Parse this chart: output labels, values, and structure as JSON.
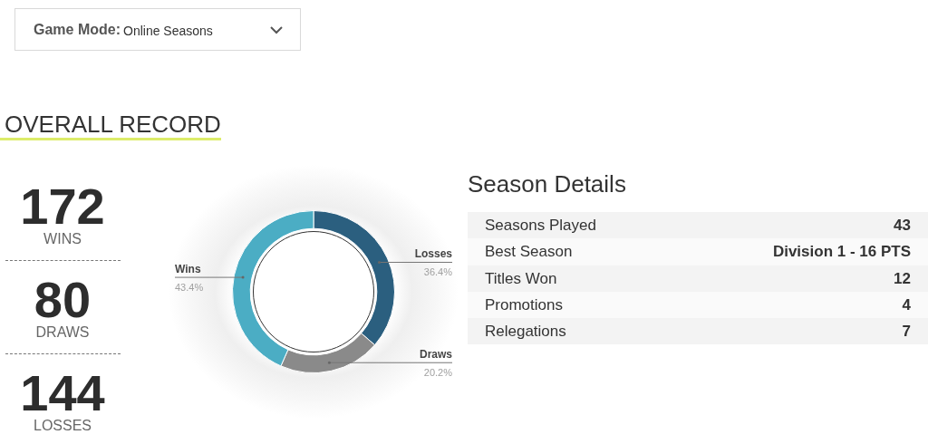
{
  "chart_data": [
    {
      "type": "other",
      "title": "OVERALL RECORD",
      "annotations": [
        "Game Mode:",
        "Online Seasons",
        "172",
        "WINS",
        "80",
        "DRAWS",
        "144",
        "LOSSES"
      ]
    },
    {
      "type": "donut",
      "categories": [
        "Losses",
        "Draws",
        "Wins"
      ],
      "values": [
        36.4,
        20.2,
        43.4
      ],
      "colors": [
        "#2b5f7f",
        "#8a8a8a",
        "#4badc4"
      ],
      "value_labels": [
        "36.4%",
        "20.2%",
        "43.4%"
      ]
    },
    {
      "type": "other",
      "title": "Season Details",
      "annotations": [
        "Seasons Played",
        "43",
        "Best Season",
        "Division 1 - 16 PTS",
        "Titles Won",
        "12",
        "Promotions",
        "4",
        "Relegations",
        "7"
      ]
    }
  ]
}
